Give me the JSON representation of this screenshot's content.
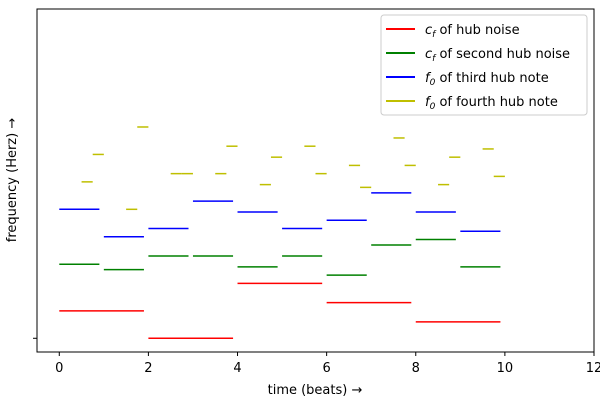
{
  "chart_data": {
    "type": "line",
    "xlabel": "time (beats) →",
    "ylabel": "frequency (Herz) →",
    "xlim": [
      -0.5,
      12
    ],
    "ylim": [
      -0.5,
      12
    ],
    "x_ticks": [
      0,
      2,
      4,
      6,
      8,
      10,
      12
    ],
    "y_ticks": [
      0
    ],
    "legend_position": "top-right",
    "series": [
      {
        "name": "c_f of hub noise",
        "color": "#ff0000",
        "segments": [
          {
            "x0": 0,
            "x1": 1.9,
            "y": 1.0
          },
          {
            "x0": 2,
            "x1": 3.9,
            "y": 0.0
          },
          {
            "x0": 4,
            "x1": 5.9,
            "y": 2.0
          },
          {
            "x0": 6,
            "x1": 7.9,
            "y": 1.3
          },
          {
            "x0": 8,
            "x1": 9.9,
            "y": 0.6
          }
        ]
      },
      {
        "name": "c_f of second hub noise",
        "color": "#008000",
        "segments": [
          {
            "x0": 0,
            "x1": 0.9,
            "y": 2.7
          },
          {
            "x0": 1,
            "x1": 1.9,
            "y": 2.5
          },
          {
            "x0": 2,
            "x1": 2.9,
            "y": 3.0
          },
          {
            "x0": 3,
            "x1": 3.9,
            "y": 3.0
          },
          {
            "x0": 4,
            "x1": 4.9,
            "y": 2.6
          },
          {
            "x0": 5,
            "x1": 5.9,
            "y": 3.0
          },
          {
            "x0": 6,
            "x1": 6.9,
            "y": 2.3
          },
          {
            "x0": 7,
            "x1": 7.9,
            "y": 3.4
          },
          {
            "x0": 8,
            "x1": 8.9,
            "y": 3.6
          },
          {
            "x0": 9,
            "x1": 9.9,
            "y": 2.6
          }
        ]
      },
      {
        "name": "f_0 of third hub note",
        "color": "#0000ff",
        "segments": [
          {
            "x0": 0,
            "x1": 0.9,
            "y": 4.7
          },
          {
            "x0": 1,
            "x1": 1.9,
            "y": 3.7
          },
          {
            "x0": 2,
            "x1": 2.9,
            "y": 4.0
          },
          {
            "x0": 3,
            "x1": 3.9,
            "y": 5.0
          },
          {
            "x0": 4,
            "x1": 4.9,
            "y": 4.6
          },
          {
            "x0": 5,
            "x1": 5.9,
            "y": 4.0
          },
          {
            "x0": 6,
            "x1": 6.9,
            "y": 4.3
          },
          {
            "x0": 7,
            "x1": 7.9,
            "y": 5.3
          },
          {
            "x0": 8,
            "x1": 8.9,
            "y": 4.6
          },
          {
            "x0": 9,
            "x1": 9.9,
            "y": 3.9
          }
        ]
      },
      {
        "name": "f_0 of fourth hub note",
        "color": "#bfbf00",
        "segments": [
          {
            "x0": 0.5,
            "x1": 0.75,
            "y": 5.7
          },
          {
            "x0": 0.75,
            "x1": 1.0,
            "y": 6.7
          },
          {
            "x0": 1.5,
            "x1": 1.75,
            "y": 4.7
          },
          {
            "x0": 1.75,
            "x1": 2.0,
            "y": 7.7
          },
          {
            "x0": 2.5,
            "x1": 2.75,
            "y": 6.0
          },
          {
            "x0": 2.75,
            "x1": 3.0,
            "y": 6.0
          },
          {
            "x0": 3.5,
            "x1": 3.75,
            "y": 6.0
          },
          {
            "x0": 3.75,
            "x1": 4.0,
            "y": 7.0
          },
          {
            "x0": 4.5,
            "x1": 4.75,
            "y": 5.6
          },
          {
            "x0": 4.75,
            "x1": 5.0,
            "y": 6.6
          },
          {
            "x0": 5.5,
            "x1": 5.75,
            "y": 7.0
          },
          {
            "x0": 5.75,
            "x1": 6.0,
            "y": 6.0
          },
          {
            "x0": 6.5,
            "x1": 6.75,
            "y": 6.3
          },
          {
            "x0": 6.75,
            "x1": 7.0,
            "y": 5.5
          },
          {
            "x0": 7.5,
            "x1": 7.75,
            "y": 7.3
          },
          {
            "x0": 7.75,
            "x1": 8.0,
            "y": 6.3
          },
          {
            "x0": 8.5,
            "x1": 8.75,
            "y": 5.6
          },
          {
            "x0": 8.75,
            "x1": 9.0,
            "y": 6.6
          },
          {
            "x0": 9.5,
            "x1": 9.75,
            "y": 6.9
          },
          {
            "x0": 9.75,
            "x1": 10.0,
            "y": 5.9
          }
        ]
      }
    ]
  }
}
